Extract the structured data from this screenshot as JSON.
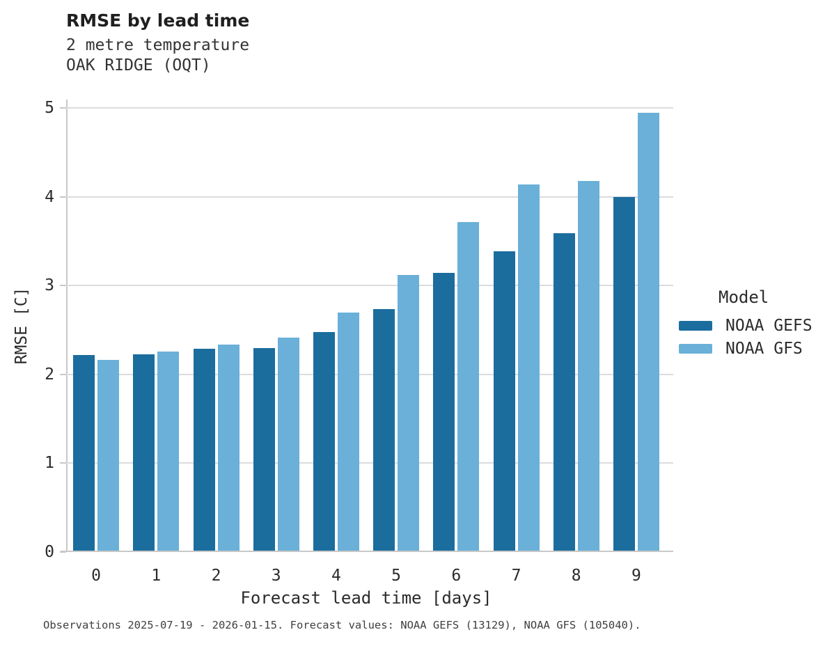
{
  "title": "RMSE by lead time",
  "subtitle_line1": "2 metre temperature",
  "subtitle_line2": "OAK RIDGE (OQT)",
  "footer": "Observations 2025-07-19 - 2026-01-15. Forecast values: NOAA GEFS (13129), NOAA GFS (105040).",
  "legend": {
    "title": "Model",
    "items": [
      {
        "label": "NOAA GEFS",
        "color": "#1b6d9e"
      },
      {
        "label": "NOAA GFS",
        "color": "#6ab0d8"
      }
    ]
  },
  "colors": {
    "gefs_bar": "#1b6d9e",
    "gfs_bar": "#6ab0d8",
    "gridline": "#dcdcdc",
    "spine": "#c8c8c8",
    "text": "#2b2b2b"
  },
  "chart_data": {
    "type": "bar",
    "title": "RMSE by lead time",
    "subtitle": [
      "2 metre temperature",
      "OAK RIDGE (OQT)"
    ],
    "xlabel": "Forecast lead time [days]",
    "ylabel": "RMSE [C]",
    "categories": [
      "0",
      "1",
      "2",
      "3",
      "4",
      "5",
      "6",
      "7",
      "8",
      "9"
    ],
    "series": [
      {
        "name": "NOAA GEFS",
        "color": "#1b6d9e",
        "values": [
          2.2,
          2.21,
          2.27,
          2.28,
          2.46,
          2.72,
          3.13,
          3.37,
          3.57,
          3.98
        ]
      },
      {
        "name": "NOAA GFS",
        "color": "#6ab0d8",
        "values": [
          2.15,
          2.24,
          2.32,
          2.4,
          2.68,
          3.1,
          3.7,
          4.12,
          4.16,
          4.93
        ]
      }
    ],
    "ylim": [
      0,
      5
    ],
    "yticks": [
      0,
      1,
      2,
      3,
      4,
      5
    ],
    "grid": true,
    "legend_position": "right",
    "caption": "Observations 2025-07-19 - 2026-01-15. Forecast values: NOAA GEFS (13129), NOAA GFS (105040)."
  }
}
